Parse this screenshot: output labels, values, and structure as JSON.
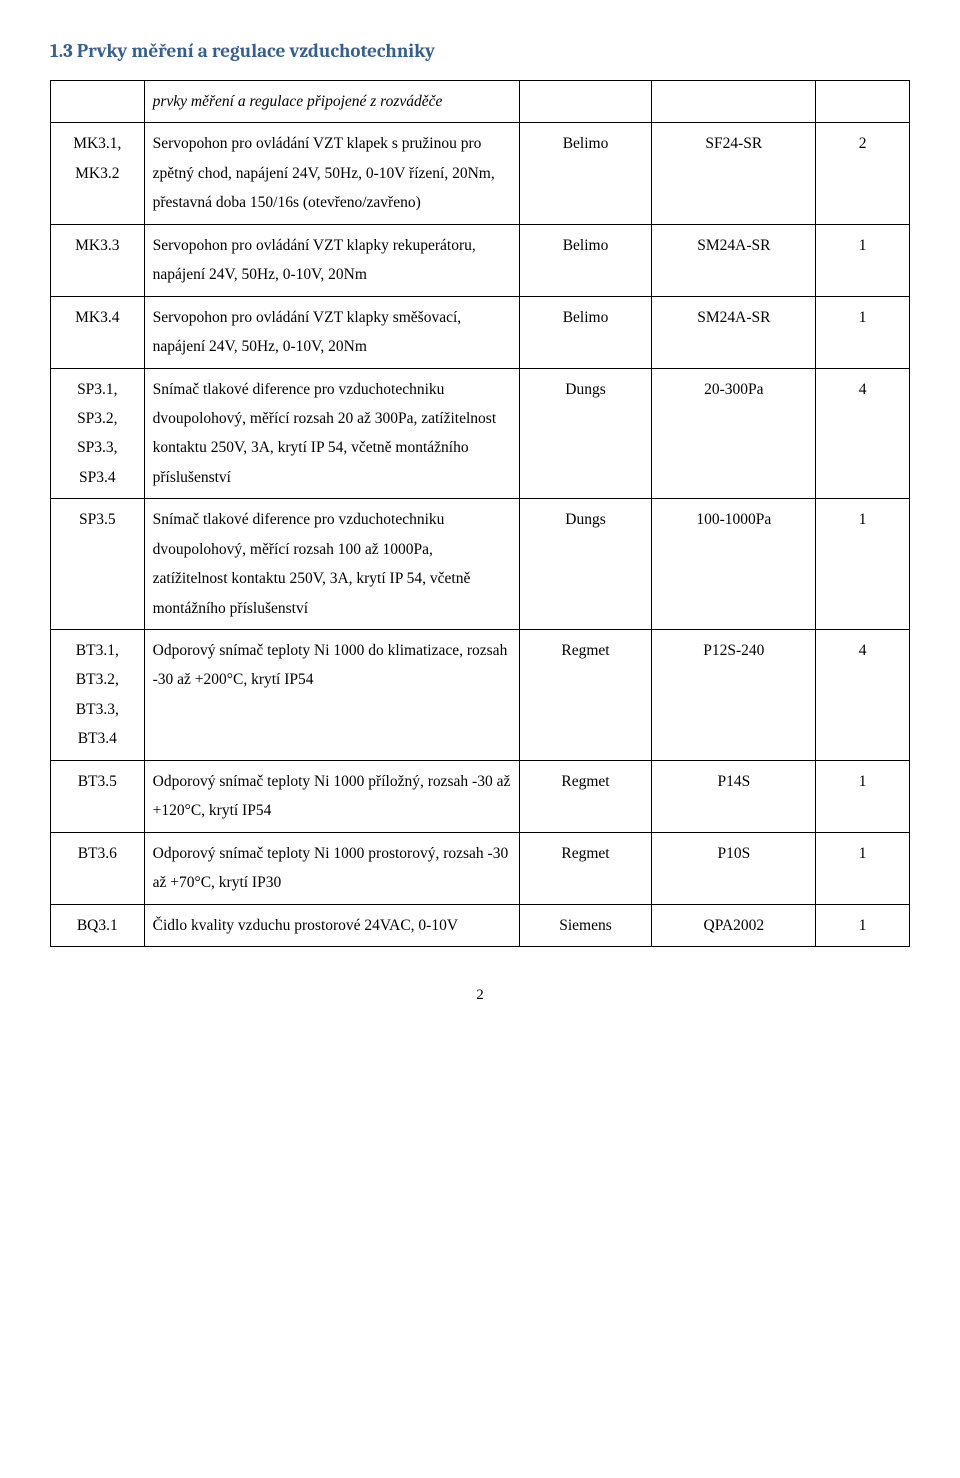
{
  "heading": "1.3 Prvky měření a regulace vzduchotechniky",
  "header_desc": "prvky měření a regulace připojené z rozváděče",
  "rows": [
    {
      "id": "MK3.1, MK3.2",
      "desc": "Servopohon pro ovládání VZT klapek s pružinou pro zpětný chod, napájení 24V, 50Hz, 0-10V řízení, 20Nm, přestavná doba 150/16s (otevřeno/zavřeno)",
      "mfr": "Belimo",
      "type": "SF24-SR",
      "qty": "2"
    },
    {
      "id": "MK3.3",
      "desc": "Servopohon pro ovládání VZT klapky rekuperátoru, napájení 24V, 50Hz, 0-10V, 20Nm",
      "mfr": "Belimo",
      "type": "SM24A-SR",
      "qty": "1"
    },
    {
      "id": "MK3.4",
      "desc": "Servopohon pro ovládání VZT klapky směšovací, napájení 24V, 50Hz, 0-10V, 20Nm",
      "mfr": "Belimo",
      "type": "SM24A-SR",
      "qty": "1"
    },
    {
      "id": "SP3.1, SP3.2, SP3.3, SP3.4",
      "desc": "Snímač tlakové diference pro vzduchotechniku dvoupolohový, měřící rozsah 20 až 300Pa, zatížitelnost kontaktu 250V, 3A, krytí IP 54, včetně montážního příslušenství",
      "mfr": "Dungs",
      "type": "20-300Pa",
      "qty": "4"
    },
    {
      "id": "SP3.5",
      "desc": "Snímač tlakové diference pro vzduchotechniku dvoupolohový, měřící rozsah 100 až 1000Pa, zatížitelnost kontaktu 250V, 3A, krytí IP 54, včetně montážního příslušenství",
      "mfr": "Dungs",
      "type": "100-1000Pa",
      "qty": "1"
    },
    {
      "id": "BT3.1, BT3.2, BT3.3, BT3.4",
      "desc": "Odporový snímač teploty Ni 1000 do klimatizace, rozsah -30 až +200°C, krytí IP54",
      "mfr": "Regmet",
      "type": "P12S-240",
      "qty": "4"
    },
    {
      "id": "BT3.5",
      "desc": "Odporový snímač teploty Ni 1000 příložný, rozsah -30 až +120°C, krytí IP54",
      "mfr": "Regmet",
      "type": "P14S",
      "qty": "1"
    },
    {
      "id": "BT3.6",
      "desc": "Odporový snímač teploty Ni 1000 prostorový, rozsah -30 až +70°C, krytí IP30",
      "mfr": "Regmet",
      "type": "P10S",
      "qty": "1"
    },
    {
      "id": "BQ3.1",
      "desc": "Čidlo kvality vzduchu prostorové 24VAC, 0-10V",
      "mfr": "Siemens",
      "type": "QPA2002",
      "qty": "1"
    }
  ],
  "page_number": "2"
}
